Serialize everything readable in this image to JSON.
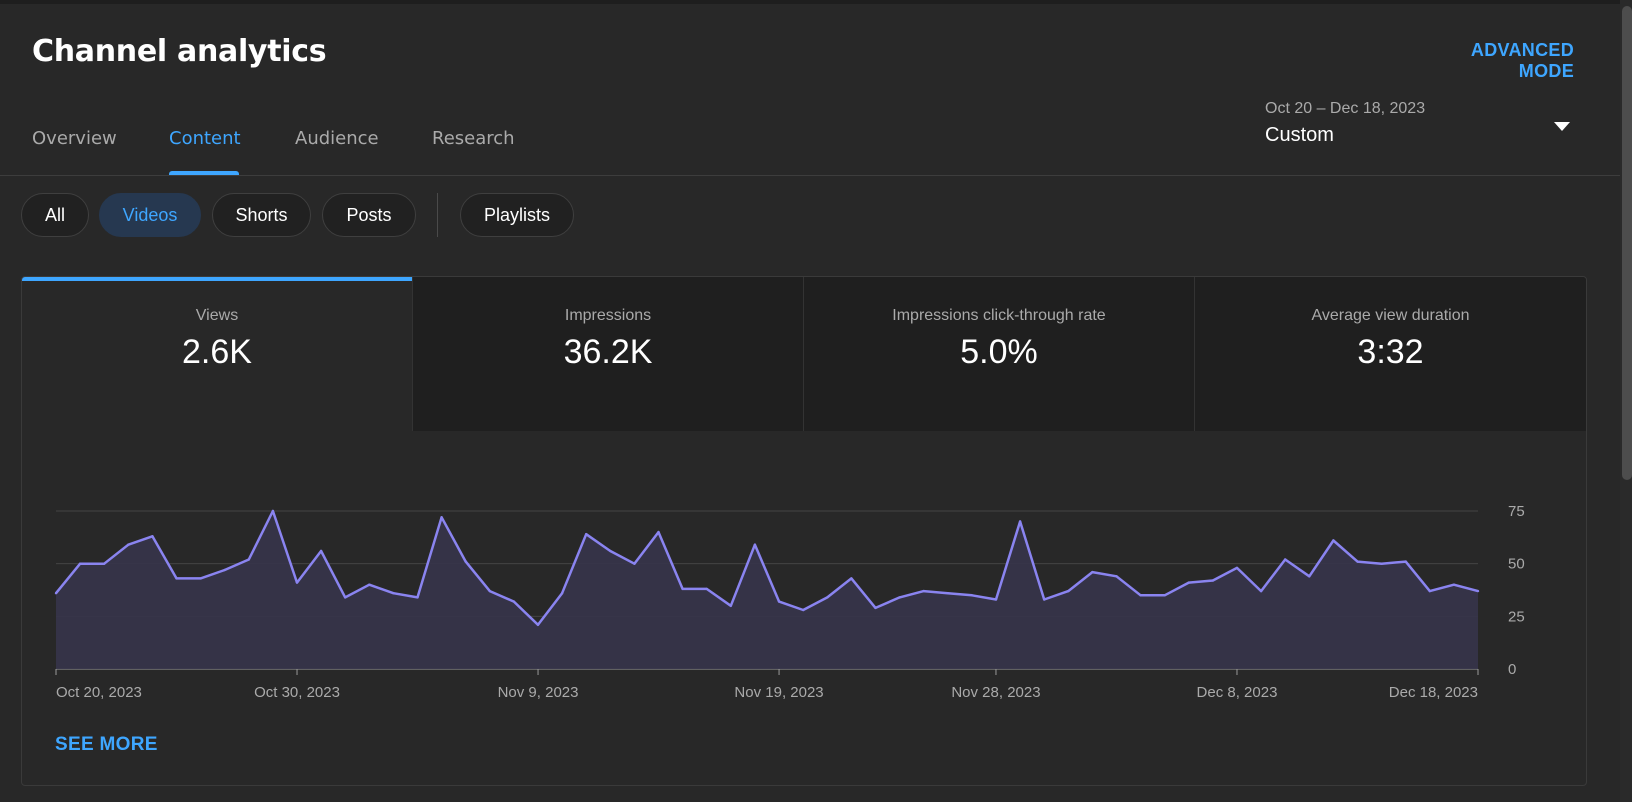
{
  "header": {
    "title": "Channel analytics",
    "advanced_mode_label": "ADVANCED MODE"
  },
  "tabs": [
    {
      "label": "Overview",
      "active": false
    },
    {
      "label": "Content",
      "active": true
    },
    {
      "label": "Audience",
      "active": false
    },
    {
      "label": "Research",
      "active": false
    }
  ],
  "date_picker": {
    "range": "Oct 20 – Dec 18, 2023",
    "preset": "Custom",
    "icon": "caret-down-icon"
  },
  "content_filters": [
    {
      "label": "All",
      "selected": false
    },
    {
      "label": "Videos",
      "selected": true
    },
    {
      "label": "Shorts",
      "selected": false
    },
    {
      "label": "Posts",
      "selected": false
    },
    {
      "label": "Playlists",
      "selected": false
    }
  ],
  "metrics": [
    {
      "label": "Views",
      "value": "2.6K",
      "active": true
    },
    {
      "label": "Impressions",
      "value": "36.2K",
      "active": false
    },
    {
      "label": "Impressions click-through rate",
      "value": "5.0%",
      "active": false
    },
    {
      "label": "Average view duration",
      "value": "3:32",
      "active": false
    }
  ],
  "see_more_label": "SEE MORE",
  "colors": {
    "accent": "#3ea6ff",
    "line": "#8a84f0",
    "area": "#36344a",
    "background": "#282828"
  },
  "chart_data": {
    "type": "area",
    "ylim": [
      0,
      75
    ],
    "y_ticks": [
      "0",
      "25",
      "50",
      "75"
    ],
    "x_tick_labels": [
      "Oct 20, 2023",
      "Oct 30, 2023",
      "Nov 9, 2023",
      "Nov 19, 2023",
      "Nov 28, 2023",
      "Dec 8, 2023",
      "Dec 18, 2023"
    ],
    "x_tick_index": [
      0,
      10,
      20,
      30,
      39,
      49,
      59
    ],
    "grid": true,
    "series": [
      {
        "values": [
          36,
          50,
          50,
          59,
          63,
          43,
          43,
          47,
          52,
          75,
          41,
          56,
          34,
          40,
          36,
          34,
          72,
          51,
          37,
          32,
          21,
          36,
          64,
          56,
          50,
          65,
          38,
          38,
          30,
          59,
          32,
          28,
          34,
          43,
          29,
          34,
          37,
          36,
          35,
          33,
          70,
          33,
          37,
          46,
          44,
          35,
          35,
          41,
          42,
          48,
          37,
          52,
          44,
          61,
          51,
          50,
          51,
          37,
          40,
          37
        ]
      }
    ]
  }
}
